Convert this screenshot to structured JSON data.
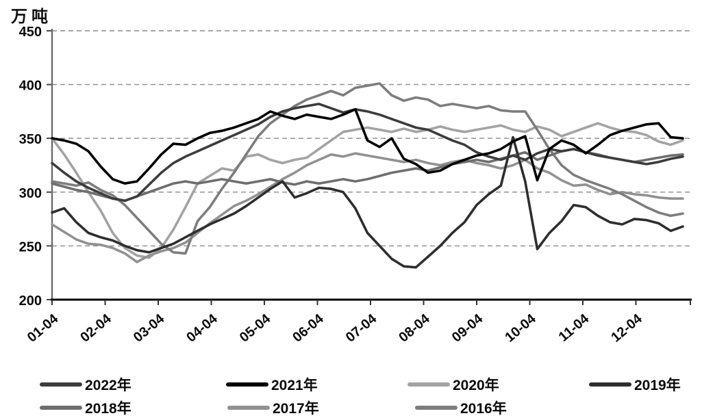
{
  "chart_data": {
    "type": "line",
    "title": "",
    "ylabel": "万吨",
    "xlabel": "",
    "ylim": [
      200,
      450
    ],
    "yticks": [
      200,
      250,
      300,
      350,
      400,
      450
    ],
    "grid": "horizontal-dashed",
    "legend_position": "bottom",
    "x_tick_labels": [
      "01-04",
      "02-04",
      "03-04",
      "04-04",
      "05-04",
      "06-04",
      "07-04",
      "08-04",
      "09-04",
      "10-04",
      "11-04",
      "12-04"
    ],
    "categories": [
      "01-04",
      "01-11",
      "01-18",
      "01-25",
      "02-01",
      "02-08",
      "02-15",
      "02-22",
      "03-01",
      "03-08",
      "03-15",
      "03-22",
      "03-29",
      "04-05",
      "04-12",
      "04-19",
      "04-26",
      "05-03",
      "05-10",
      "05-17",
      "05-24",
      "05-31",
      "06-07",
      "06-14",
      "06-21",
      "06-28",
      "07-05",
      "07-12",
      "07-19",
      "07-26",
      "08-02",
      "08-09",
      "08-16",
      "08-23",
      "08-30",
      "09-06",
      "09-13",
      "09-20",
      "09-27",
      "10-04",
      "10-11",
      "10-18",
      "10-25",
      "11-01",
      "11-08",
      "11-15",
      "11-22",
      "11-29",
      "12-06",
      "12-13",
      "12-20",
      "12-27",
      "12-31"
    ],
    "z_order": [
      "2020年",
      "2017年",
      "2016年",
      "2018年",
      "2019年",
      "2022年",
      "2021年"
    ],
    "series": [
      {
        "name": "2022年",
        "color": "#3c3c3c",
        "values": [
          327,
          318,
          310,
          304,
          299,
          294,
          292,
          296,
          307,
          318,
          327,
          333,
          338,
          343,
          348,
          353,
          358,
          363,
          370,
          375,
          378,
          380,
          382,
          378,
          374,
          377,
          375,
          372,
          368,
          364,
          360,
          358,
          353,
          348,
          344,
          337,
          333,
          330,
          334,
          330,
          336,
          340,
          338,
          340,
          337,
          334,
          332,
          330,
          328,
          326,
          328,
          331,
          333
        ]
      },
      {
        "name": "2021年",
        "color": "#000000",
        "values": [
          350,
          348,
          345,
          338,
          324,
          312,
          308,
          310,
          322,
          335,
          345,
          344,
          350,
          355,
          357,
          360,
          364,
          368,
          375,
          371,
          368,
          372,
          370,
          368,
          372,
          377,
          348,
          342,
          350,
          331,
          326,
          318,
          320,
          326,
          330,
          334,
          336,
          340,
          347,
          352,
          311,
          340,
          348,
          344,
          336,
          344,
          353,
          357,
          360,
          363,
          364,
          351,
          350
        ]
      },
      {
        "name": "2020年",
        "color": "#a3a3a3",
        "values": [
          350,
          335,
          318,
          300,
          283,
          262,
          248,
          241,
          239,
          248,
          265,
          286,
          308,
          315,
          322,
          320,
          333,
          335,
          330,
          327,
          330,
          332,
          340,
          348,
          356,
          358,
          360,
          358,
          356,
          359,
          356,
          358,
          361,
          358,
          356,
          358,
          360,
          362,
          358,
          356,
          361,
          358,
          352,
          356,
          360,
          364,
          360,
          357,
          356,
          353,
          347,
          344,
          348
        ]
      },
      {
        "name": "2019年",
        "color": "#2e2e2e",
        "values": [
          281,
          285,
          272,
          262,
          258,
          255,
          250,
          246,
          244,
          248,
          252,
          258,
          264,
          270,
          275,
          280,
          287,
          295,
          303,
          310,
          295,
          299,
          304,
          303,
          300,
          285,
          262,
          250,
          238,
          231,
          230,
          240,
          250,
          262,
          272,
          288,
          298,
          306,
          351,
          310,
          247,
          262,
          273,
          288,
          286,
          278,
          272,
          270,
          275,
          274,
          271,
          264,
          268
        ]
      },
      {
        "name": "2018年",
        "color": "#6e6e6e",
        "values": [
          308,
          305,
          302,
          300,
          297,
          294,
          292,
          296,
          300,
          304,
          308,
          310,
          308,
          310,
          312,
          310,
          308,
          310,
          312,
          309,
          307,
          310,
          308,
          310,
          312,
          310,
          312,
          315,
          318,
          320,
          322,
          320,
          323,
          326,
          328,
          330,
          328,
          331,
          334,
          337,
          330,
          334,
          338,
          340,
          337,
          335,
          332,
          330,
          328,
          330,
          332,
          334,
          335
        ]
      },
      {
        "name": "2017年",
        "color": "#919191",
        "values": [
          270,
          263,
          256,
          252,
          251,
          248,
          243,
          235,
          241,
          245,
          248,
          253,
          262,
          271,
          279,
          287,
          292,
          298,
          305,
          312,
          318,
          325,
          330,
          335,
          333,
          336,
          334,
          332,
          330,
          328,
          330,
          327,
          325,
          328,
          330,
          327,
          325,
          322,
          325,
          330,
          322,
          318,
          311,
          306,
          307,
          302,
          298,
          300,
          298,
          297,
          295,
          294,
          294
        ]
      },
      {
        "name": "2016年",
        "color": "#7d7d7d",
        "values": [
          310,
          308,
          306,
          309,
          302,
          297,
          288,
          276,
          264,
          252,
          244,
          243,
          273,
          286,
          303,
          318,
          335,
          352,
          364,
          372,
          380,
          386,
          390,
          394,
          390,
          397,
          399,
          401,
          390,
          385,
          388,
          386,
          380,
          382,
          380,
          378,
          380,
          376,
          375,
          375,
          358,
          340,
          325,
          316,
          311,
          307,
          303,
          298,
          292,
          286,
          281,
          278,
          280
        ]
      }
    ]
  },
  "legend": {
    "items": [
      {
        "label": "2022年",
        "color": "#3c3c3c"
      },
      {
        "label": "2021年",
        "color": "#000000"
      },
      {
        "label": "2020年",
        "color": "#a3a3a3"
      },
      {
        "label": "2019年",
        "color": "#2e2e2e"
      },
      {
        "label": "2018年",
        "color": "#6e6e6e"
      },
      {
        "label": "2017年",
        "color": "#919191"
      },
      {
        "label": "2016年",
        "color": "#7d7d7d"
      }
    ]
  }
}
